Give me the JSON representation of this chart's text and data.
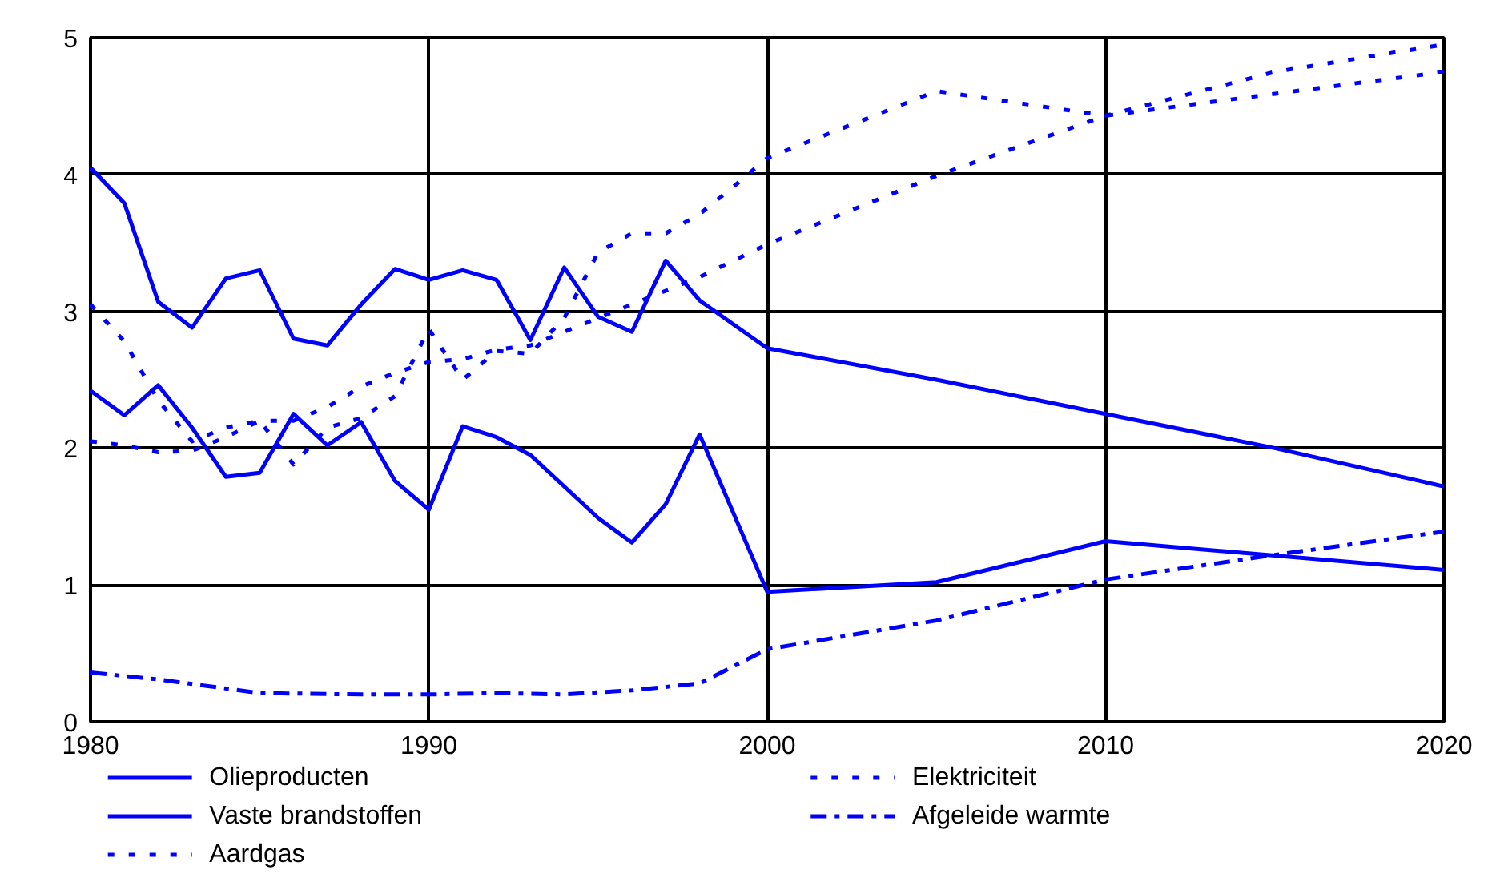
{
  "chart_data": {
    "type": "line",
    "xlim": [
      1980,
      2020
    ],
    "ylim": [
      0,
      5
    ],
    "xticks": [
      1980,
      1990,
      2000,
      2010,
      2020
    ],
    "yticks": [
      0,
      1,
      2,
      3,
      4,
      5
    ],
    "grid": true,
    "legend": "bottom",
    "marker": "none",
    "series": [
      {
        "name": "Olieproducten",
        "color": "#0000ff",
        "line_style": "solid",
        "x": [
          1980,
          1981,
          1982,
          1983,
          1984,
          1985,
          1986,
          1987,
          1988,
          1989,
          1990,
          1991,
          1992,
          1993,
          1994,
          1995,
          1996,
          1997,
          1998,
          2000,
          2005,
          2010,
          2015,
          2020
        ],
        "values": [
          4.05,
          3.79,
          3.07,
          2.88,
          3.24,
          3.3,
          2.8,
          2.75,
          3.05,
          3.31,
          3.23,
          3.3,
          3.23,
          2.79,
          3.32,
          2.96,
          2.85,
          3.37,
          3.08,
          2.73,
          2.5,
          2.25,
          2.0,
          1.72
        ]
      },
      {
        "name": "Vaste brandstoffen",
        "color": "#0000ff",
        "line_style": "solid",
        "x": [
          1980,
          1981,
          1982,
          1983,
          1984,
          1985,
          1986,
          1987,
          1988,
          1989,
          1990,
          1991,
          1992,
          1993,
          1994,
          1995,
          1996,
          1997,
          1998,
          2000,
          2005,
          2010,
          2020
        ],
        "values": [
          2.42,
          2.24,
          2.46,
          2.15,
          1.79,
          1.82,
          2.25,
          2.02,
          2.19,
          1.76,
          1.55,
          2.16,
          2.08,
          1.95,
          1.72,
          1.49,
          1.31,
          1.59,
          2.1,
          0.95,
          1.02,
          1.32,
          1.11
        ]
      },
      {
        "name": "Aardgas",
        "color": "#0000ff",
        "line_style": "dotted",
        "x": [
          1980,
          1981,
          1982,
          1983,
          1984,
          1985,
          1986,
          1987,
          1988,
          1989,
          1990,
          1991,
          1992,
          1993,
          1994,
          1995,
          1996,
          1997,
          1998,
          2000,
          2005,
          2010,
          2020
        ],
        "values": [
          2.05,
          2.02,
          1.97,
          1.98,
          2.08,
          2.2,
          2.2,
          2.3,
          2.45,
          2.55,
          2.63,
          2.65,
          2.72,
          2.75,
          2.85,
          2.95,
          3.05,
          3.15,
          3.25,
          3.49,
          3.99,
          4.43,
          4.75
        ]
      },
      {
        "name": "Elektriciteit",
        "color": "#0000ff",
        "line_style": "dotted",
        "x": [
          1980,
          1981,
          1982,
          1983,
          1984,
          1985,
          1986,
          1987,
          1988,
          1989,
          1990,
          1991,
          1992,
          1993,
          1994,
          1995,
          1996,
          1997,
          1998,
          1999,
          2000,
          2005,
          2010,
          2015,
          2020
        ],
        "values": [
          3.05,
          2.78,
          2.35,
          2.05,
          2.15,
          2.2,
          1.88,
          2.15,
          2.22,
          2.38,
          2.87,
          2.5,
          2.71,
          2.69,
          2.95,
          3.43,
          3.57,
          3.57,
          3.71,
          3.91,
          4.12,
          4.61,
          4.43,
          4.75,
          4.95
        ]
      },
      {
        "name": "Afgeleide warmte",
        "color": "#0000ff",
        "line_style": "dashdot",
        "x": [
          1980,
          1982,
          1985,
          1988,
          1990,
          1992,
          1994,
          1996,
          1998,
          2000,
          2005,
          2010,
          2015,
          2020
        ],
        "values": [
          0.36,
          0.31,
          0.21,
          0.2,
          0.2,
          0.21,
          0.2,
          0.23,
          0.28,
          0.53,
          0.74,
          1.04,
          1.22,
          1.39
        ]
      }
    ]
  }
}
